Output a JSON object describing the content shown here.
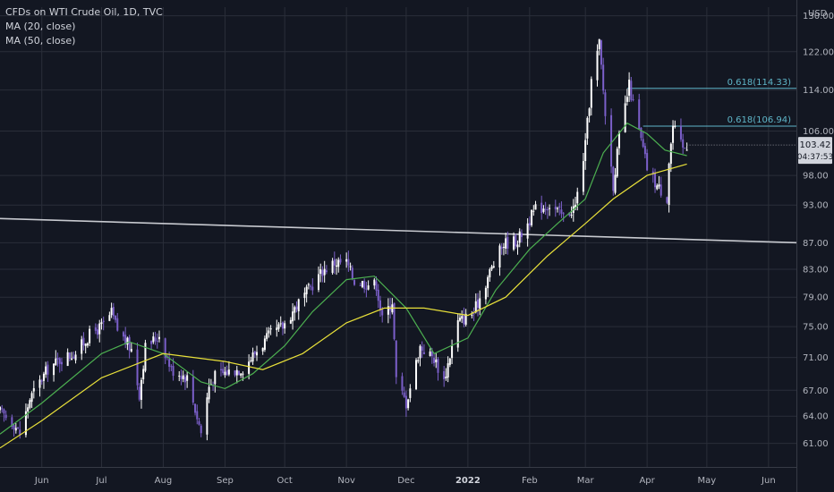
{
  "legend": {
    "title": "CFDs on WTI Crude Oil, 1D, TVC",
    "ma20": "MA (20, close)",
    "ma50": "MA (50, close)"
  },
  "axis": {
    "currency": "USD",
    "last_price": "103.42",
    "countdown": "04:37:53"
  },
  "colors": {
    "background": "#131722",
    "up": "#ffffff",
    "down": "#7b5fc9",
    "ma20": "#4caf50",
    "ma50": "#e8e03a",
    "trendline": "#c8cad0",
    "fib": "#5fb6c9",
    "grid": "#2a2e39"
  },
  "chart_data": {
    "type": "candlestick",
    "title": "CFDs on WTI Crude Oil, 1D, TVC",
    "y_scale": "log",
    "ylim": [
      58.5,
      132
    ],
    "y_ticks": [
      130,
      122,
      114,
      106,
      98,
      93,
      87,
      83,
      79,
      75,
      71,
      67,
      64,
      61
    ],
    "y_tick_labels": [
      "130.00",
      "122.00",
      "114.00",
      "106.00",
      "98.00",
      "93.00",
      "87.00",
      "83.00",
      "79.00",
      "75.00",
      "71.00",
      "67.00",
      "64.00",
      "61.00"
    ],
    "x_ticks": [
      {
        "label": "Jun",
        "date": "2021-06-01"
      },
      {
        "label": "Jul",
        "date": "2021-07-01"
      },
      {
        "label": "Aug",
        "date": "2021-08-01"
      },
      {
        "label": "Sep",
        "date": "2021-09-01"
      },
      {
        "label": "Oct",
        "date": "2021-10-01"
      },
      {
        "label": "Nov",
        "date": "2021-11-01"
      },
      {
        "label": "Dec",
        "date": "2021-12-01"
      },
      {
        "label": "2022",
        "date": "2022-01-01"
      },
      {
        "label": "Feb",
        "date": "2022-02-01"
      },
      {
        "label": "Mar",
        "date": "2022-03-01"
      },
      {
        "label": "Apr",
        "date": "2022-04-01"
      },
      {
        "label": "May",
        "date": "2022-05-01"
      },
      {
        "label": "Jun",
        "date": "2022-06-01"
      }
    ],
    "xlim": [
      "2021-05-11",
      "2022-06-15"
    ],
    "close_path": [
      [
        "2021-05-11",
        64.5
      ],
      [
        "2021-05-18",
        63.2
      ],
      [
        "2021-05-21",
        62.0
      ],
      [
        "2021-05-26",
        66.0
      ],
      [
        "2021-06-04",
        69.6
      ],
      [
        "2021-06-11",
        70.9
      ],
      [
        "2021-06-18",
        71.6
      ],
      [
        "2021-06-25",
        73.9
      ],
      [
        "2021-07-02",
        75.2
      ],
      [
        "2021-07-06",
        76.8
      ],
      [
        "2021-07-09",
        74.6
      ],
      [
        "2021-07-16",
        72.0
      ],
      [
        "2021-07-20",
        66.6
      ],
      [
        "2021-07-23",
        72.3
      ],
      [
        "2021-07-30",
        73.9
      ],
      [
        "2021-08-05",
        69.5
      ],
      [
        "2021-08-10",
        69.0
      ],
      [
        "2021-08-13",
        68.5
      ],
      [
        "2021-08-20",
        62.2
      ],
      [
        "2021-08-24",
        67.5
      ],
      [
        "2021-08-27",
        68.7
      ],
      [
        "2021-09-03",
        69.3
      ],
      [
        "2021-09-10",
        69.7
      ],
      [
        "2021-09-17",
        71.9
      ],
      [
        "2021-09-24",
        74.0
      ],
      [
        "2021-09-30",
        75.0
      ],
      [
        "2021-10-06",
        77.5
      ],
      [
        "2021-10-13",
        80.0
      ],
      [
        "2021-10-20",
        82.8
      ],
      [
        "2021-10-26",
        84.0
      ],
      [
        "2021-11-01",
        84.0
      ],
      [
        "2021-11-05",
        81.3
      ],
      [
        "2021-11-10",
        81.0
      ],
      [
        "2021-11-16",
        80.8
      ],
      [
        "2021-11-19",
        75.9
      ],
      [
        "2021-11-24",
        78.5
      ],
      [
        "2021-11-26",
        68.2
      ],
      [
        "2021-12-01",
        65.5
      ],
      [
        "2021-12-08",
        72.4
      ],
      [
        "2021-12-15",
        70.9
      ],
      [
        "2021-12-20",
        68.2
      ],
      [
        "2021-12-27",
        75.6
      ],
      [
        "2022-01-04",
        76.9
      ],
      [
        "2022-01-12",
        82.6
      ],
      [
        "2022-01-19",
        86.9
      ],
      [
        "2022-01-26",
        87.4
      ],
      [
        "2022-02-04",
        92.3
      ],
      [
        "2022-02-11",
        93.1
      ],
      [
        "2022-02-18",
        91.1
      ],
      [
        "2022-02-24",
        92.8
      ],
      [
        "2022-03-01",
        103.4
      ],
      [
        "2022-03-04",
        115.7
      ],
      [
        "2022-03-08",
        123.7
      ],
      [
        "2022-03-11",
        109.3
      ],
      [
        "2022-03-15",
        96.4
      ],
      [
        "2022-03-18",
        104.7
      ],
      [
        "2022-03-23",
        114.9
      ],
      [
        "2022-03-29",
        104.2
      ],
      [
        "2022-04-01",
        99.3
      ],
      [
        "2022-04-06",
        96.2
      ],
      [
        "2022-04-11",
        94.3
      ],
      [
        "2022-04-12",
        100.6
      ],
      [
        "2022-04-14",
        106.9
      ],
      [
        "2022-04-19",
        102.6
      ],
      [
        "2022-04-21",
        103.4
      ]
    ],
    "ma20_path": [
      [
        "2021-05-11",
        62.0
      ],
      [
        "2021-06-01",
        65.5
      ],
      [
        "2021-07-01",
        71.5
      ],
      [
        "2021-07-15",
        73.0
      ],
      [
        "2021-08-01",
        71.5
      ],
      [
        "2021-08-20",
        68.0
      ],
      [
        "2021-09-01",
        67.2
      ],
      [
        "2021-09-15",
        69.0
      ],
      [
        "2021-10-01",
        72.5
      ],
      [
        "2021-10-15",
        77.0
      ],
      [
        "2021-11-01",
        81.5
      ],
      [
        "2021-11-15",
        82.0
      ],
      [
        "2021-12-01",
        77.5
      ],
      [
        "2021-12-15",
        71.5
      ],
      [
        "2022-01-01",
        73.5
      ],
      [
        "2022-01-15",
        80.0
      ],
      [
        "2022-02-01",
        86.0
      ],
      [
        "2022-02-15",
        90.0
      ],
      [
        "2022-03-01",
        94.0
      ],
      [
        "2022-03-10",
        102.0
      ],
      [
        "2022-03-22",
        107.5
      ],
      [
        "2022-04-01",
        105.5
      ],
      [
        "2022-04-10",
        102.5
      ],
      [
        "2022-04-21",
        101.5
      ]
    ],
    "ma50_path": [
      [
        "2021-05-11",
        60.5
      ],
      [
        "2021-06-01",
        63.5
      ],
      [
        "2021-07-01",
        68.5
      ],
      [
        "2021-08-01",
        71.5
      ],
      [
        "2021-09-01",
        70.5
      ],
      [
        "2021-09-20",
        69.5
      ],
      [
        "2021-10-10",
        71.5
      ],
      [
        "2021-11-01",
        75.5
      ],
      [
        "2021-11-20",
        77.5
      ],
      [
        "2021-12-10",
        77.5
      ],
      [
        "2022-01-01",
        76.5
      ],
      [
        "2022-01-20",
        79.0
      ],
      [
        "2022-02-10",
        85.0
      ],
      [
        "2022-03-01",
        90.0
      ],
      [
        "2022-03-15",
        94.0
      ],
      [
        "2022-04-01",
        98.0
      ],
      [
        "2022-04-21",
        100.0
      ]
    ],
    "trendline": {
      "start": [
        "2021-05-11",
        90.8
      ],
      "end": [
        "2022-06-15",
        87.0
      ]
    },
    "fib_levels": [
      {
        "label": "0.618(114.33)",
        "value": 114.33,
        "from": "2022-03-22"
      },
      {
        "label": "0.618(106.94)",
        "value": 106.94,
        "from": "2022-03-30"
      }
    ],
    "last_price": 103.42
  }
}
